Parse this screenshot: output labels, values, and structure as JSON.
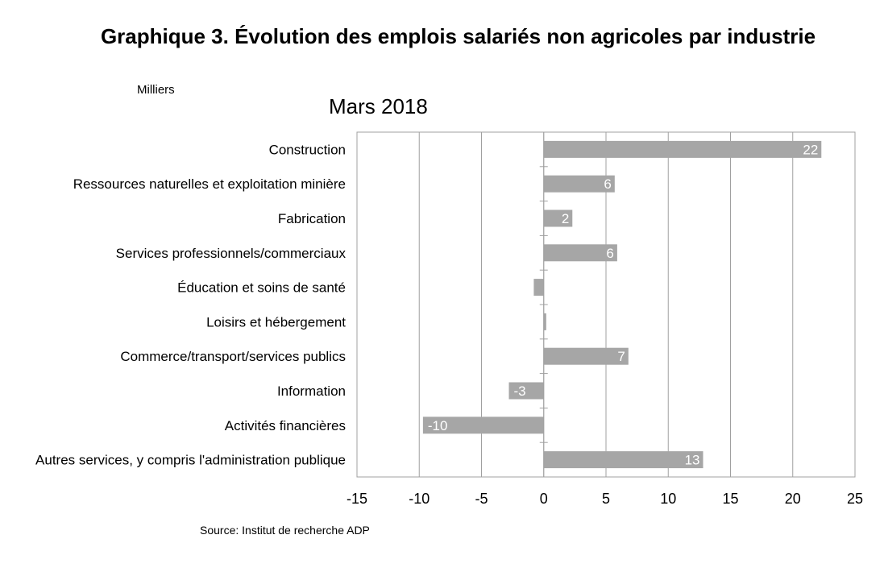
{
  "chart_data": {
    "type": "bar",
    "orientation": "horizontal",
    "title": "Graphique 3. Évolution des emplois salariés non agricoles par industrie",
    "subtitle": "Mars 2018",
    "units_label": "Milliers",
    "source": "Source: Institut de recherche ADP",
    "categories": [
      "Construction",
      "Ressources naturelles et exploitation minière",
      "Fabrication",
      "Services professionnels/commerciaux",
      "Éducation et soins de santé",
      "Loisirs et hébergement",
      "Commerce/transport/services publics",
      "Information",
      "Activités financières",
      "Autres services, y compris l'administration publique"
    ],
    "values": [
      22.3,
      5.7,
      2.3,
      5.9,
      -0.8,
      0.2,
      6.8,
      -2.8,
      -9.7,
      12.8
    ],
    "value_labels": [
      "22",
      "6",
      "2",
      "6",
      "",
      "",
      "7",
      "-3",
      "-10",
      "13"
    ],
    "xlim": [
      -15,
      25
    ],
    "xticks": [
      "-15",
      "-10",
      "-5",
      "0",
      "5",
      "10",
      "15",
      "20",
      "25"
    ],
    "grid": true,
    "colors": {
      "bar": "#a6a6a6",
      "grid": "#a0a0a0",
      "label": "#ffffff"
    }
  }
}
